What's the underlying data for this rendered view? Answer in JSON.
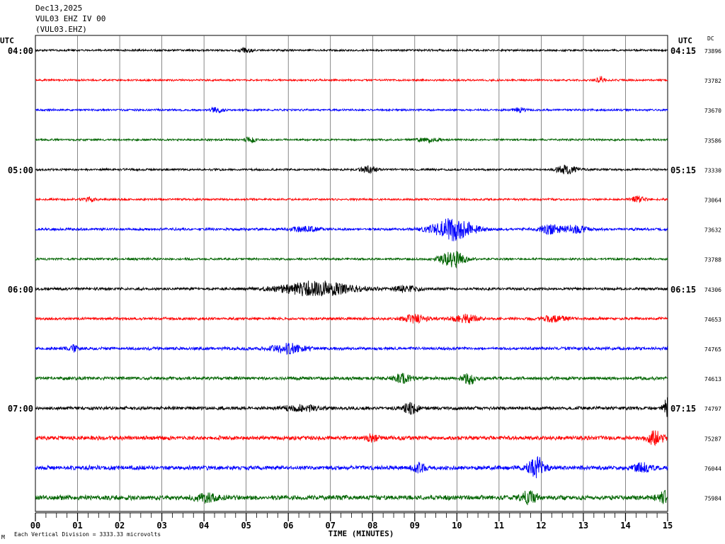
{
  "header": {
    "date": "Dec13,2025",
    "channel": "VUL03 EHZ IV 00",
    "station": "(VUL03.EHZ)"
  },
  "footer": {
    "scale_note": "Each Vertical Division = 3333.33 microvolts",
    "corner_mark": "M"
  },
  "chart_data": {
    "type": "line",
    "title": "VUL03 EHZ IV 00",
    "xlabel": "TIME (MINUTES)",
    "x_ticks": [
      "00",
      "01",
      "02",
      "03",
      "04",
      "05",
      "06",
      "07",
      "08",
      "09",
      "10",
      "11",
      "12",
      "13",
      "14",
      "15"
    ],
    "xlim": [
      0,
      15
    ],
    "left_axis_label": "UTC",
    "right_axis_label": "UTC",
    "dc_label": "DC",
    "colors": [
      "#000000",
      "#ff0000",
      "#0000ff",
      "#006400"
    ],
    "left_time_labels": [
      {
        "row": 0,
        "text": "04:00"
      },
      {
        "row": 4,
        "text": "05:00"
      },
      {
        "row": 8,
        "text": "06:00"
      },
      {
        "row": 12,
        "text": "07:00"
      }
    ],
    "right_time_labels": [
      {
        "row": 0,
        "text": "04:15"
      },
      {
        "row": 4,
        "text": "05:15"
      },
      {
        "row": 8,
        "text": "06:15"
      },
      {
        "row": 12,
        "text": "07:15"
      }
    ],
    "series": [
      {
        "dc": "73896",
        "color": "#000000",
        "amp": 1.6,
        "events": [
          [
            5.0,
            3,
            0.15
          ]
        ]
      },
      {
        "dc": "73782",
        "color": "#ff0000",
        "amp": 1.5,
        "events": [
          [
            13.4,
            5,
            0.1
          ]
        ]
      },
      {
        "dc": "73670",
        "color": "#0000ff",
        "amp": 1.6,
        "events": [
          [
            4.3,
            3,
            0.2
          ],
          [
            11.5,
            3,
            0.15
          ]
        ]
      },
      {
        "dc": "73586",
        "color": "#006400",
        "amp": 1.6,
        "events": [
          [
            5.1,
            4,
            0.12
          ],
          [
            9.3,
            3,
            0.25
          ]
        ]
      },
      {
        "dc": "73330",
        "color": "#000000",
        "amp": 1.7,
        "events": [
          [
            7.9,
            4,
            0.2
          ],
          [
            12.6,
            6,
            0.25
          ]
        ]
      },
      {
        "dc": "73064",
        "color": "#ff0000",
        "amp": 1.6,
        "events": [
          [
            1.3,
            3,
            0.15
          ],
          [
            14.3,
            4,
            0.15
          ]
        ]
      },
      {
        "dc": "73632",
        "color": "#0000ff",
        "amp": 2.0,
        "events": [
          [
            6.4,
            4,
            0.3
          ],
          [
            9.9,
            16,
            0.5
          ],
          [
            12.2,
            6,
            0.25
          ],
          [
            12.8,
            5,
            0.3
          ]
        ]
      },
      {
        "dc": "73788",
        "color": "#006400",
        "amp": 1.8,
        "events": [
          [
            9.9,
            11,
            0.3
          ]
        ]
      },
      {
        "dc": "74306",
        "color": "#000000",
        "amp": 2.2,
        "events": [
          [
            6.7,
            10,
            0.9
          ],
          [
            8.8,
            4,
            0.3
          ]
        ]
      },
      {
        "dc": "74653",
        "color": "#ff0000",
        "amp": 2.2,
        "events": [
          [
            9.0,
            5,
            0.3
          ],
          [
            10.2,
            5,
            0.3
          ],
          [
            12.3,
            4,
            0.3
          ]
        ]
      },
      {
        "dc": "74765",
        "color": "#0000ff",
        "amp": 2.5,
        "events": [
          [
            6.0,
            6,
            0.4
          ],
          [
            0.9,
            4,
            0.1
          ]
        ]
      },
      {
        "dc": "74613",
        "color": "#006400",
        "amp": 2.6,
        "events": [
          [
            8.7,
            6,
            0.2
          ],
          [
            10.3,
            8,
            0.15
          ]
        ]
      },
      {
        "dc": "74797",
        "color": "#000000",
        "amp": 2.7,
        "events": [
          [
            8.9,
            7,
            0.2
          ],
          [
            15.0,
            14,
            0.1
          ],
          [
            6.3,
            4,
            0.4
          ]
        ]
      },
      {
        "dc": "75287",
        "color": "#ff0000",
        "amp": 3.2,
        "events": [
          [
            14.7,
            9,
            0.2
          ],
          [
            8.0,
            5,
            0.15
          ]
        ]
      },
      {
        "dc": "76044",
        "color": "#0000ff",
        "amp": 3.4,
        "events": [
          [
            11.9,
            14,
            0.2
          ],
          [
            9.1,
            6,
            0.15
          ],
          [
            14.4,
            6,
            0.2
          ]
        ]
      },
      {
        "dc": "75984",
        "color": "#006400",
        "amp": 3.7,
        "events": [
          [
            11.7,
            8,
            0.2
          ],
          [
            14.9,
            8,
            0.15
          ],
          [
            4.0,
            5,
            0.3
          ]
        ]
      }
    ]
  }
}
